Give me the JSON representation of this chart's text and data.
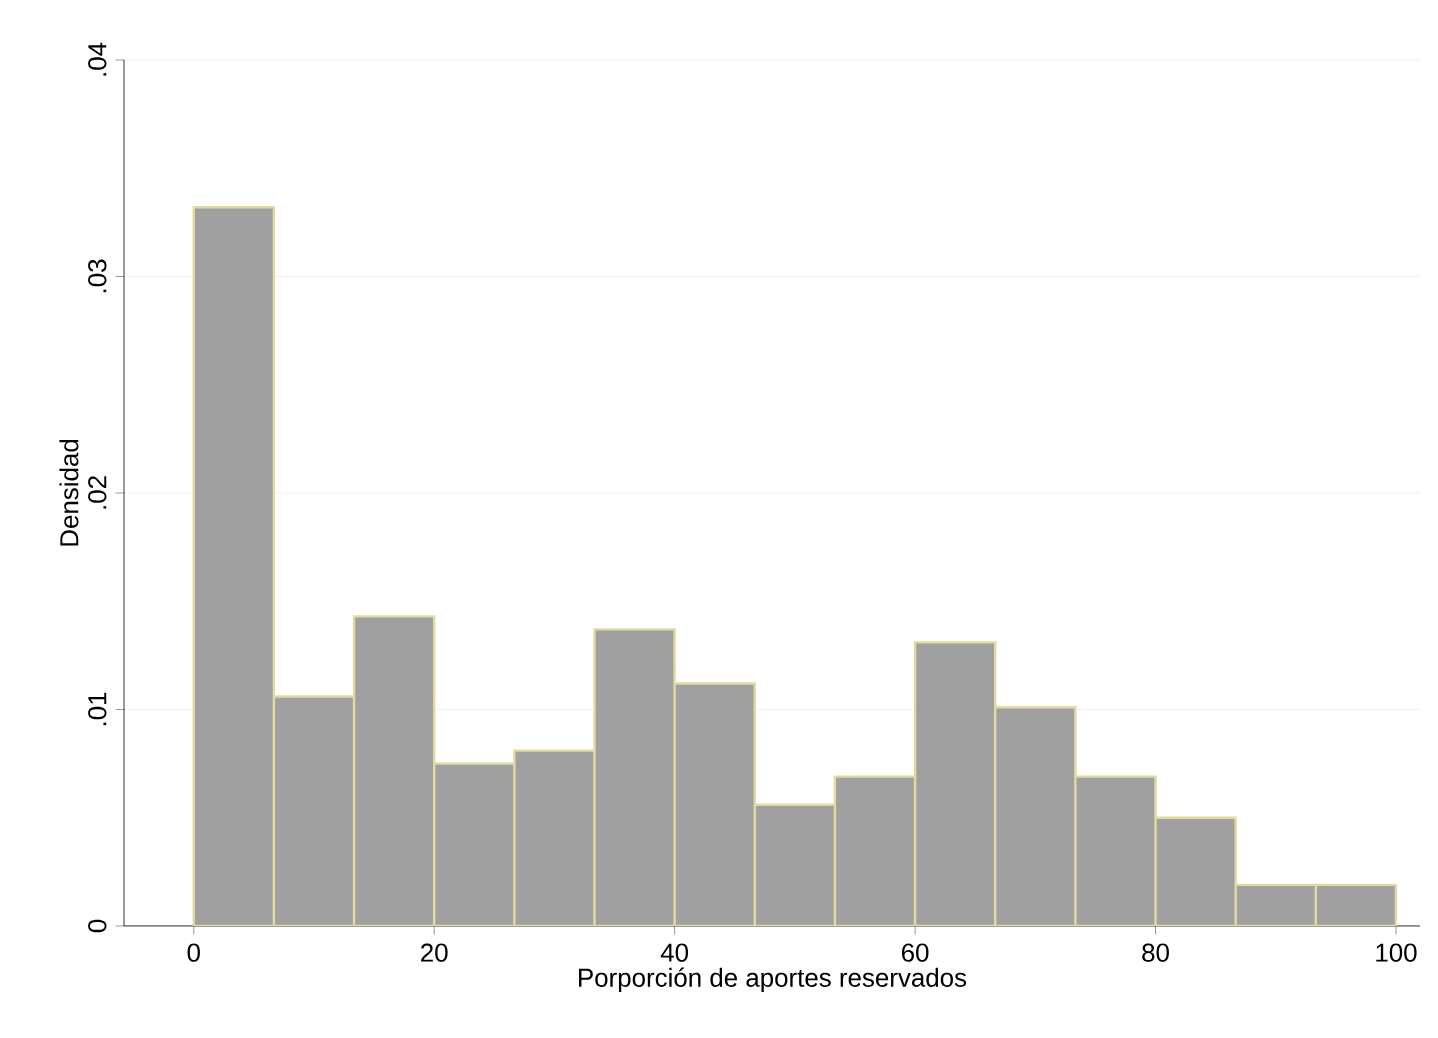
{
  "chart_data": {
    "type": "histogram",
    "xlabel": "Porporción de aportes reservados",
    "ylabel": "Densidad",
    "bins": [
      0,
      6.667,
      13.333,
      20,
      26.667,
      33.333,
      40,
      46.667,
      53.333,
      60,
      66.667,
      73.333,
      80,
      86.667,
      93.333,
      100
    ],
    "values": [
      0.0332,
      0.0106,
      0.0143,
      0.0075,
      0.0081,
      0.0137,
      0.0112,
      0.0056,
      0.0069,
      0.0131,
      0.0101,
      0.0069,
      0.005,
      0.0019,
      0.0019
    ],
    "color": "#a0a0a0",
    "xlim": [
      -5.8,
      102
    ],
    "ylim": [
      0,
      0.04
    ],
    "xticks": [
      0,
      20,
      40,
      60,
      80,
      100
    ],
    "yticks": [
      0,
      {
        "value": 0.01,
        "label": ".01"
      },
      {
        "value": 0.02,
        "label": ".02"
      },
      {
        "value": 0.03,
        "label": ".03"
      },
      {
        "value": 0.04,
        "label": ".04"
      }
    ],
    "grid": "y"
  }
}
